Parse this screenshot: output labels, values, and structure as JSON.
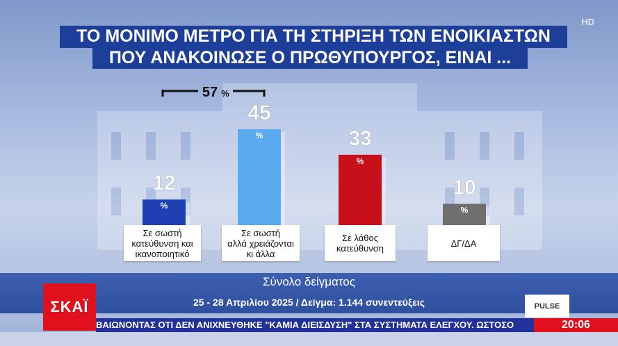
{
  "header": {
    "title_line1": "ΤΟ ΜΟΝΙΜΟ ΜΕΤΡΟ ΓΙΑ ΤΗ ΣΤΗΡΙΞΗ ΤΩΝ ΕΝΟΙΚΙΑΣΤΩΝ",
    "title_line2": "ΠΟΥ ΑΝΑΚΟΙΝΩΣΕ Ο ΠΡΩΘΥΠΟΥΡΓΟΣ, ΕΙΝΑΙ ..."
  },
  "hd_badge": "HD",
  "chart_data": {
    "type": "bar",
    "categories": [
      [
        "Σε σωστή",
        "κατεύθυνση και",
        "ικανοποιητικό"
      ],
      [
        "Σε σωστή",
        "αλλά χρειάζονται",
        "κι άλλα"
      ],
      [
        "Σε λάθος",
        "κατεύθυνση"
      ],
      [
        "ΔΓ/ΔΑ"
      ]
    ],
    "values": [
      12,
      45,
      33,
      10
    ],
    "unit": "%",
    "colors": [
      "#1f3fb5",
      "#5aaaf0",
      "#c8101a",
      "#6f6f6f"
    ],
    "bracket": {
      "label": "57",
      "unit": "%",
      "spans": [
        0,
        1
      ]
    },
    "ylim": [
      0,
      50
    ]
  },
  "footer": {
    "sample_title": "Σύνολο δείγματος",
    "sample_info": "25 - 28 Απριλίου 2025 / Δείγμα: 1.144 συνεντεύξεις",
    "channel_logo": "ΣΚΑΪ",
    "pollster_logo": "PULSE",
    "ticker": "ΒΑΙΩΝΟΝΤΑΣ ΟΤΙ ΔΕΝ ΑΝΙΧΝΕΥΘΗΚΕ \"ΚΑΜΙΑ ΔΙΕΙΣΔΥΣΗ\" ΣΤΑ ΣΥΣΤΗΜΑΤΑ ΕΛΕΓΧΟΥ. ΩΣΤΟΣΟ",
    "clock": "20:06"
  }
}
